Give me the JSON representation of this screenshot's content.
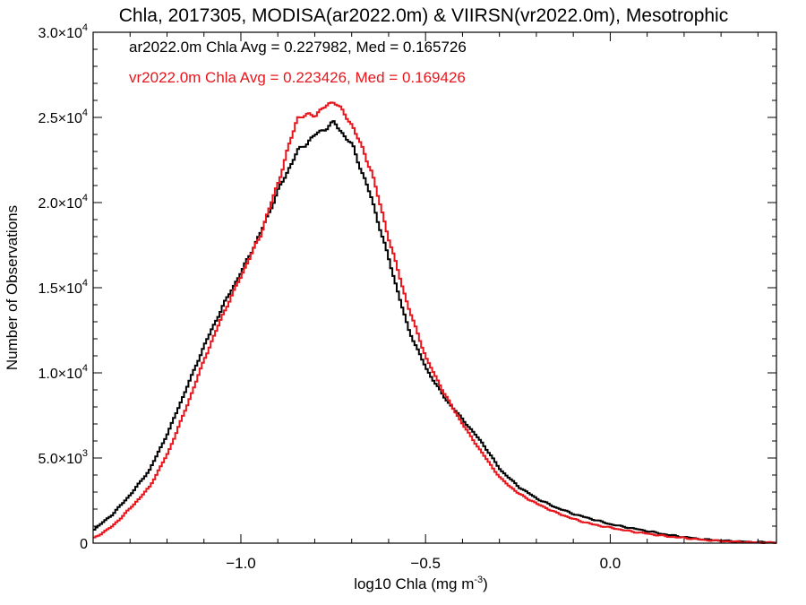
{
  "chart_data": {
    "type": "line",
    "title": "Chla, 2017305, MODISA(ar2022.0m) & VIIRSN(vr2022.0m), Mesotrophic",
    "xlabel_main": "log10 Chla (mg m",
    "xlabel_exp": "-3",
    "xlabel_close": ")",
    "ylabel": "Number of Observations",
    "xlim": [
      -1.4,
      0.45
    ],
    "ylim": [
      0,
      30000
    ],
    "x_ticks": [
      {
        "value": -1.0,
        "label": "−1.0"
      },
      {
        "value": -0.5,
        "label": "−0.5"
      },
      {
        "value": 0.0,
        "label": "0.0"
      }
    ],
    "y_ticks": [
      {
        "value": 0,
        "mant": "0",
        "exp": ""
      },
      {
        "value": 5000,
        "mant": "5.0×10",
        "exp": "3"
      },
      {
        "value": 10000,
        "mant": "1.0×10",
        "exp": "4"
      },
      {
        "value": 15000,
        "mant": "1.5×10",
        "exp": "4"
      },
      {
        "value": 20000,
        "mant": "2.0×10",
        "exp": "4"
      },
      {
        "value": 25000,
        "mant": "2.5×10",
        "exp": "4"
      },
      {
        "value": 30000,
        "mant": "3.0×10",
        "exp": "4"
      }
    ],
    "legend_placement": "top-left",
    "series": [
      {
        "name": "ar2022.0m Chla Avg = 0.227982, Med = 0.165726",
        "color": "#000000",
        "points": [
          [
            -1.4,
            800
          ],
          [
            -1.35,
            1700
          ],
          [
            -1.3,
            2900
          ],
          [
            -1.25,
            4300
          ],
          [
            -1.2,
            6500
          ],
          [
            -1.15,
            9100
          ],
          [
            -1.1,
            11700
          ],
          [
            -1.05,
            14000
          ],
          [
            -1.0,
            16000
          ],
          [
            -0.95,
            18200
          ],
          [
            -0.9,
            20800
          ],
          [
            -0.85,
            23000
          ],
          [
            -0.8,
            24000
          ],
          [
            -0.75,
            24700
          ],
          [
            -0.7,
            23300
          ],
          [
            -0.65,
            20300
          ],
          [
            -0.6,
            16500
          ],
          [
            -0.55,
            12600
          ],
          [
            -0.5,
            10200
          ],
          [
            -0.45,
            8500
          ],
          [
            -0.4,
            7200
          ],
          [
            -0.35,
            5900
          ],
          [
            -0.3,
            4300
          ],
          [
            -0.25,
            3300
          ],
          [
            -0.2,
            2600
          ],
          [
            -0.15,
            2100
          ],
          [
            -0.1,
            1700
          ],
          [
            -0.05,
            1400
          ],
          [
            0.0,
            1100
          ],
          [
            0.05,
            900
          ],
          [
            0.1,
            700
          ],
          [
            0.15,
            500
          ],
          [
            0.2,
            350
          ],
          [
            0.25,
            220
          ],
          [
            0.3,
            150
          ],
          [
            0.35,
            90
          ],
          [
            0.4,
            60
          ],
          [
            0.45,
            30
          ]
        ]
      },
      {
        "name": "vr2022.0m Chla Avg = 0.223426, Med = 0.169426",
        "color": "#e8161c",
        "points": [
          [
            -1.4,
            300
          ],
          [
            -1.35,
            1000
          ],
          [
            -1.3,
            2100
          ],
          [
            -1.25,
            3300
          ],
          [
            -1.2,
            5300
          ],
          [
            -1.15,
            8000
          ],
          [
            -1.1,
            10900
          ],
          [
            -1.05,
            13500
          ],
          [
            -1.0,
            15800
          ],
          [
            -0.95,
            18100
          ],
          [
            -0.9,
            21300
          ],
          [
            -0.85,
            25000
          ],
          [
            -0.8,
            25200
          ],
          [
            -0.75,
            26000
          ],
          [
            -0.7,
            24500
          ],
          [
            -0.65,
            21900
          ],
          [
            -0.6,
            17700
          ],
          [
            -0.55,
            13900
          ],
          [
            -0.5,
            10800
          ],
          [
            -0.45,
            8700
          ],
          [
            -0.4,
            6900
          ],
          [
            -0.35,
            5300
          ],
          [
            -0.3,
            3800
          ],
          [
            -0.25,
            2900
          ],
          [
            -0.2,
            2300
          ],
          [
            -0.15,
            1800
          ],
          [
            -0.1,
            1400
          ],
          [
            -0.05,
            1100
          ],
          [
            0.0,
            900
          ],
          [
            0.05,
            700
          ],
          [
            0.1,
            550
          ],
          [
            0.15,
            400
          ],
          [
            0.2,
            300
          ],
          [
            0.25,
            190
          ],
          [
            0.3,
            120
          ],
          [
            0.35,
            70
          ],
          [
            0.4,
            40
          ],
          [
            0.45,
            20
          ]
        ]
      }
    ]
  }
}
